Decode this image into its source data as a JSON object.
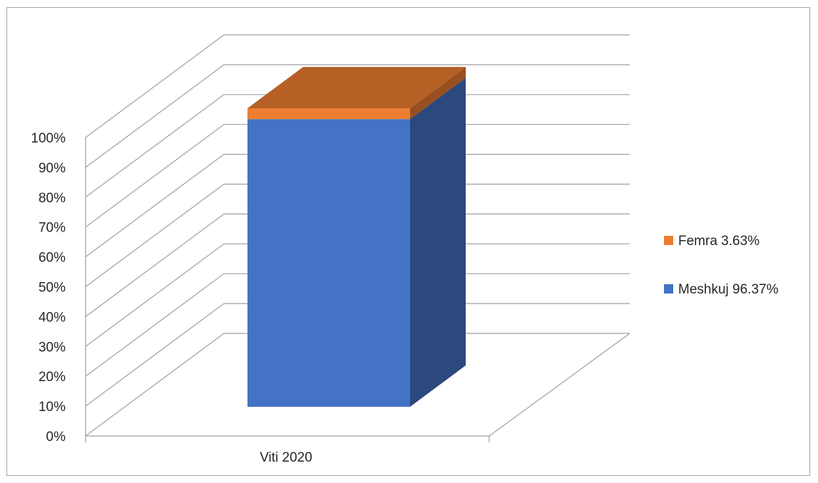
{
  "chart_data": {
    "type": "bar",
    "stacked": true,
    "three_d": true,
    "categories": [
      "Viti 2020"
    ],
    "series": [
      {
        "name": "Meshkuj 96.37%",
        "values": [
          96.37
        ],
        "color": "#4472c4"
      },
      {
        "name": "Femra 3.63%",
        "values": [
          3.63
        ],
        "color": "#ed7d31"
      }
    ],
    "y_ticks": [
      "0%",
      "10%",
      "20%",
      "30%",
      "40%",
      "50%",
      "60%",
      "70%",
      "80%",
      "90%",
      "100%"
    ],
    "ylim": [
      0,
      100
    ],
    "grid": true,
    "legend": "right",
    "legend_entries": [
      {
        "label": "Femra 3.63%",
        "color": "#ed7d31"
      },
      {
        "label": "Meshkuj 96.37%",
        "color": "#4472c4"
      }
    ],
    "title": "",
    "xlabel": "",
    "ylabel": ""
  }
}
